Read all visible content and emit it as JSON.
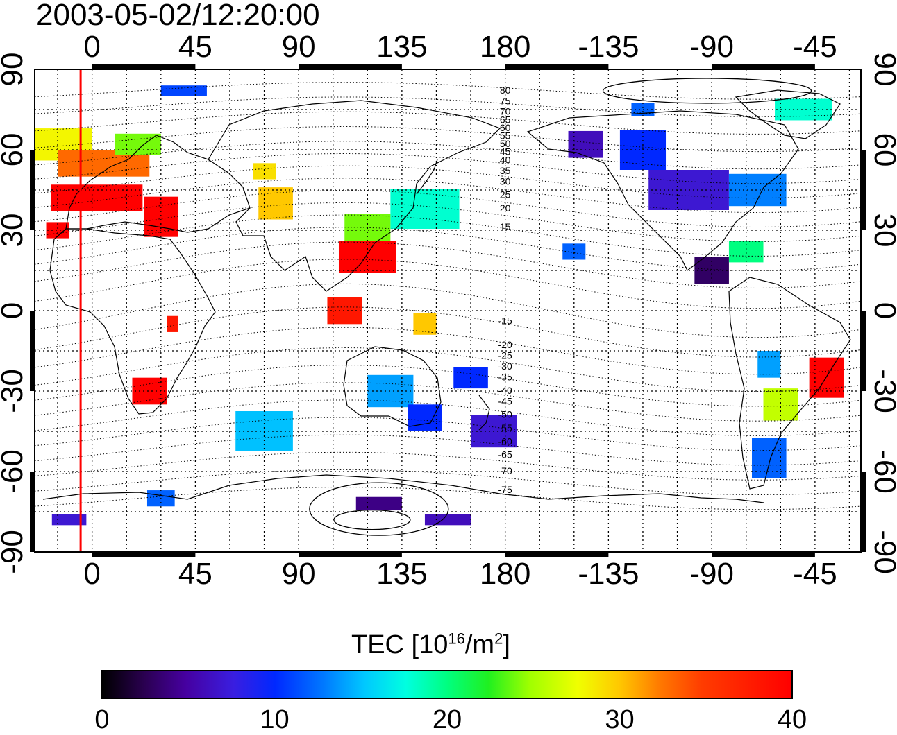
{
  "title": "2003-05-02/12:20:00",
  "map": {
    "x_ticks": [
      "0",
      "45",
      "90",
      "135",
      "180",
      "-135",
      "-90",
      "-45"
    ],
    "y_ticks": [
      "90",
      "60",
      "30",
      "0",
      "-30",
      "-60",
      "-90"
    ],
    "x_tick_lon_unwrapped": [
      0,
      45,
      90,
      135,
      180,
      225,
      270,
      315
    ],
    "lon_range_unwrapped": [
      -25,
      335
    ],
    "lat_range": [
      -90,
      90
    ],
    "graticule": "15deg dotted grid",
    "contour_labels": [
      "80",
      "75",
      "70",
      "65",
      "60",
      "55",
      "50",
      "45",
      "40",
      "35",
      "30",
      "25",
      "20",
      "15",
      "-15",
      "-20",
      "-25",
      "-30",
      "-35",
      "-40",
      "-45",
      "-50",
      "-55",
      "-60",
      "-65",
      "-70",
      "-75"
    ],
    "marker_line_lon": -5,
    "marker_line_color": "#ff0000"
  },
  "colorbar": {
    "title_prefix": "TEC  [10",
    "title_sup1": "16",
    "title_mid": "/m",
    "title_sup2": "2",
    "title_suffix": "]",
    "ticks": [
      "0",
      "10",
      "20",
      "30",
      "40"
    ],
    "range": [
      0,
      40
    ]
  },
  "tec_patches": [
    {
      "lon": -20,
      "lat": 62,
      "w": 40,
      "h": 12,
      "tec": 28
    },
    {
      "lon": 5,
      "lat": 55,
      "w": 40,
      "h": 10,
      "tec": 33
    },
    {
      "lon": 2,
      "lat": 42,
      "w": 40,
      "h": 10,
      "tec": 40
    },
    {
      "lon": 20,
      "lat": 62,
      "w": 20,
      "h": 8,
      "tec": 24
    },
    {
      "lon": 30,
      "lat": 35,
      "w": 15,
      "h": 15,
      "tec": 40
    },
    {
      "lon": -15,
      "lat": 30,
      "w": 10,
      "h": 6,
      "tec": 40
    },
    {
      "lon": 80,
      "lat": 40,
      "w": 15,
      "h": 12,
      "tec": 30
    },
    {
      "lon": 75,
      "lat": 52,
      "w": 10,
      "h": 6,
      "tec": 29
    },
    {
      "lon": 145,
      "lat": 38,
      "w": 30,
      "h": 15,
      "tec": 18
    },
    {
      "lon": 120,
      "lat": 30,
      "w": 20,
      "h": 12,
      "tec": 24
    },
    {
      "lon": 120,
      "lat": 20,
      "w": 25,
      "h": 12,
      "tec": 40
    },
    {
      "lon": 110,
      "lat": 0,
      "w": 15,
      "h": 10,
      "tec": 38
    },
    {
      "lon": 145,
      "lat": -5,
      "w": 10,
      "h": 8,
      "tec": 30
    },
    {
      "lon": 130,
      "lat": -30,
      "w": 20,
      "h": 12,
      "tec": 14
    },
    {
      "lon": 145,
      "lat": -40,
      "w": 15,
      "h": 10,
      "tec": 10
    },
    {
      "lon": 175,
      "lat": -45,
      "w": 20,
      "h": 12,
      "tec": 7
    },
    {
      "lon": 165,
      "lat": -25,
      "w": 15,
      "h": 8,
      "tec": 10
    },
    {
      "lon": 25,
      "lat": -30,
      "w": 15,
      "h": 10,
      "tec": 40
    },
    {
      "lon": 35,
      "lat": -5,
      "w": 5,
      "h": 6,
      "tec": 38
    },
    {
      "lon": 75,
      "lat": -45,
      "w": 25,
      "h": 15,
      "tec": 15
    },
    {
      "lon": 260,
      "lat": 45,
      "w": 35,
      "h": 15,
      "tec": 7
    },
    {
      "lon": 290,
      "lat": 45,
      "w": 25,
      "h": 12,
      "tec": 13
    },
    {
      "lon": 240,
      "lat": 60,
      "w": 20,
      "h": 15,
      "tec": 10
    },
    {
      "lon": 215,
      "lat": 62,
      "w": 15,
      "h": 10,
      "tec": 6
    },
    {
      "lon": 270,
      "lat": 15,
      "w": 15,
      "h": 10,
      "tec": 3
    },
    {
      "lon": 285,
      "lat": 22,
      "w": 15,
      "h": 8,
      "tec": 20
    },
    {
      "lon": 320,
      "lat": -25,
      "w": 15,
      "h": 15,
      "tec": 40
    },
    {
      "lon": 300,
      "lat": -35,
      "w": 15,
      "h": 12,
      "tec": 26
    },
    {
      "lon": 295,
      "lat": -55,
      "w": 15,
      "h": 15,
      "tec": 12
    },
    {
      "lon": 295,
      "lat": -20,
      "w": 10,
      "h": 10,
      "tec": 14
    },
    {
      "lon": 310,
      "lat": 75,
      "w": 25,
      "h": 8,
      "tec": 18
    },
    {
      "lon": 240,
      "lat": 75,
      "w": 10,
      "h": 5,
      "tec": 12
    },
    {
      "lon": 30,
      "lat": -70,
      "w": 12,
      "h": 6,
      "tec": 12
    },
    {
      "lon": 125,
      "lat": -72,
      "w": 20,
      "h": 5,
      "tec": 4
    },
    {
      "lon": 155,
      "lat": -78,
      "w": 20,
      "h": 4,
      "tec": 6
    },
    {
      "lon": -10,
      "lat": -78,
      "w": 15,
      "h": 4,
      "tec": 7
    },
    {
      "lon": 40,
      "lat": 82,
      "w": 20,
      "h": 4,
      "tec": 11
    },
    {
      "lon": 210,
      "lat": 22,
      "w": 10,
      "h": 6,
      "tec": 12
    }
  ]
}
